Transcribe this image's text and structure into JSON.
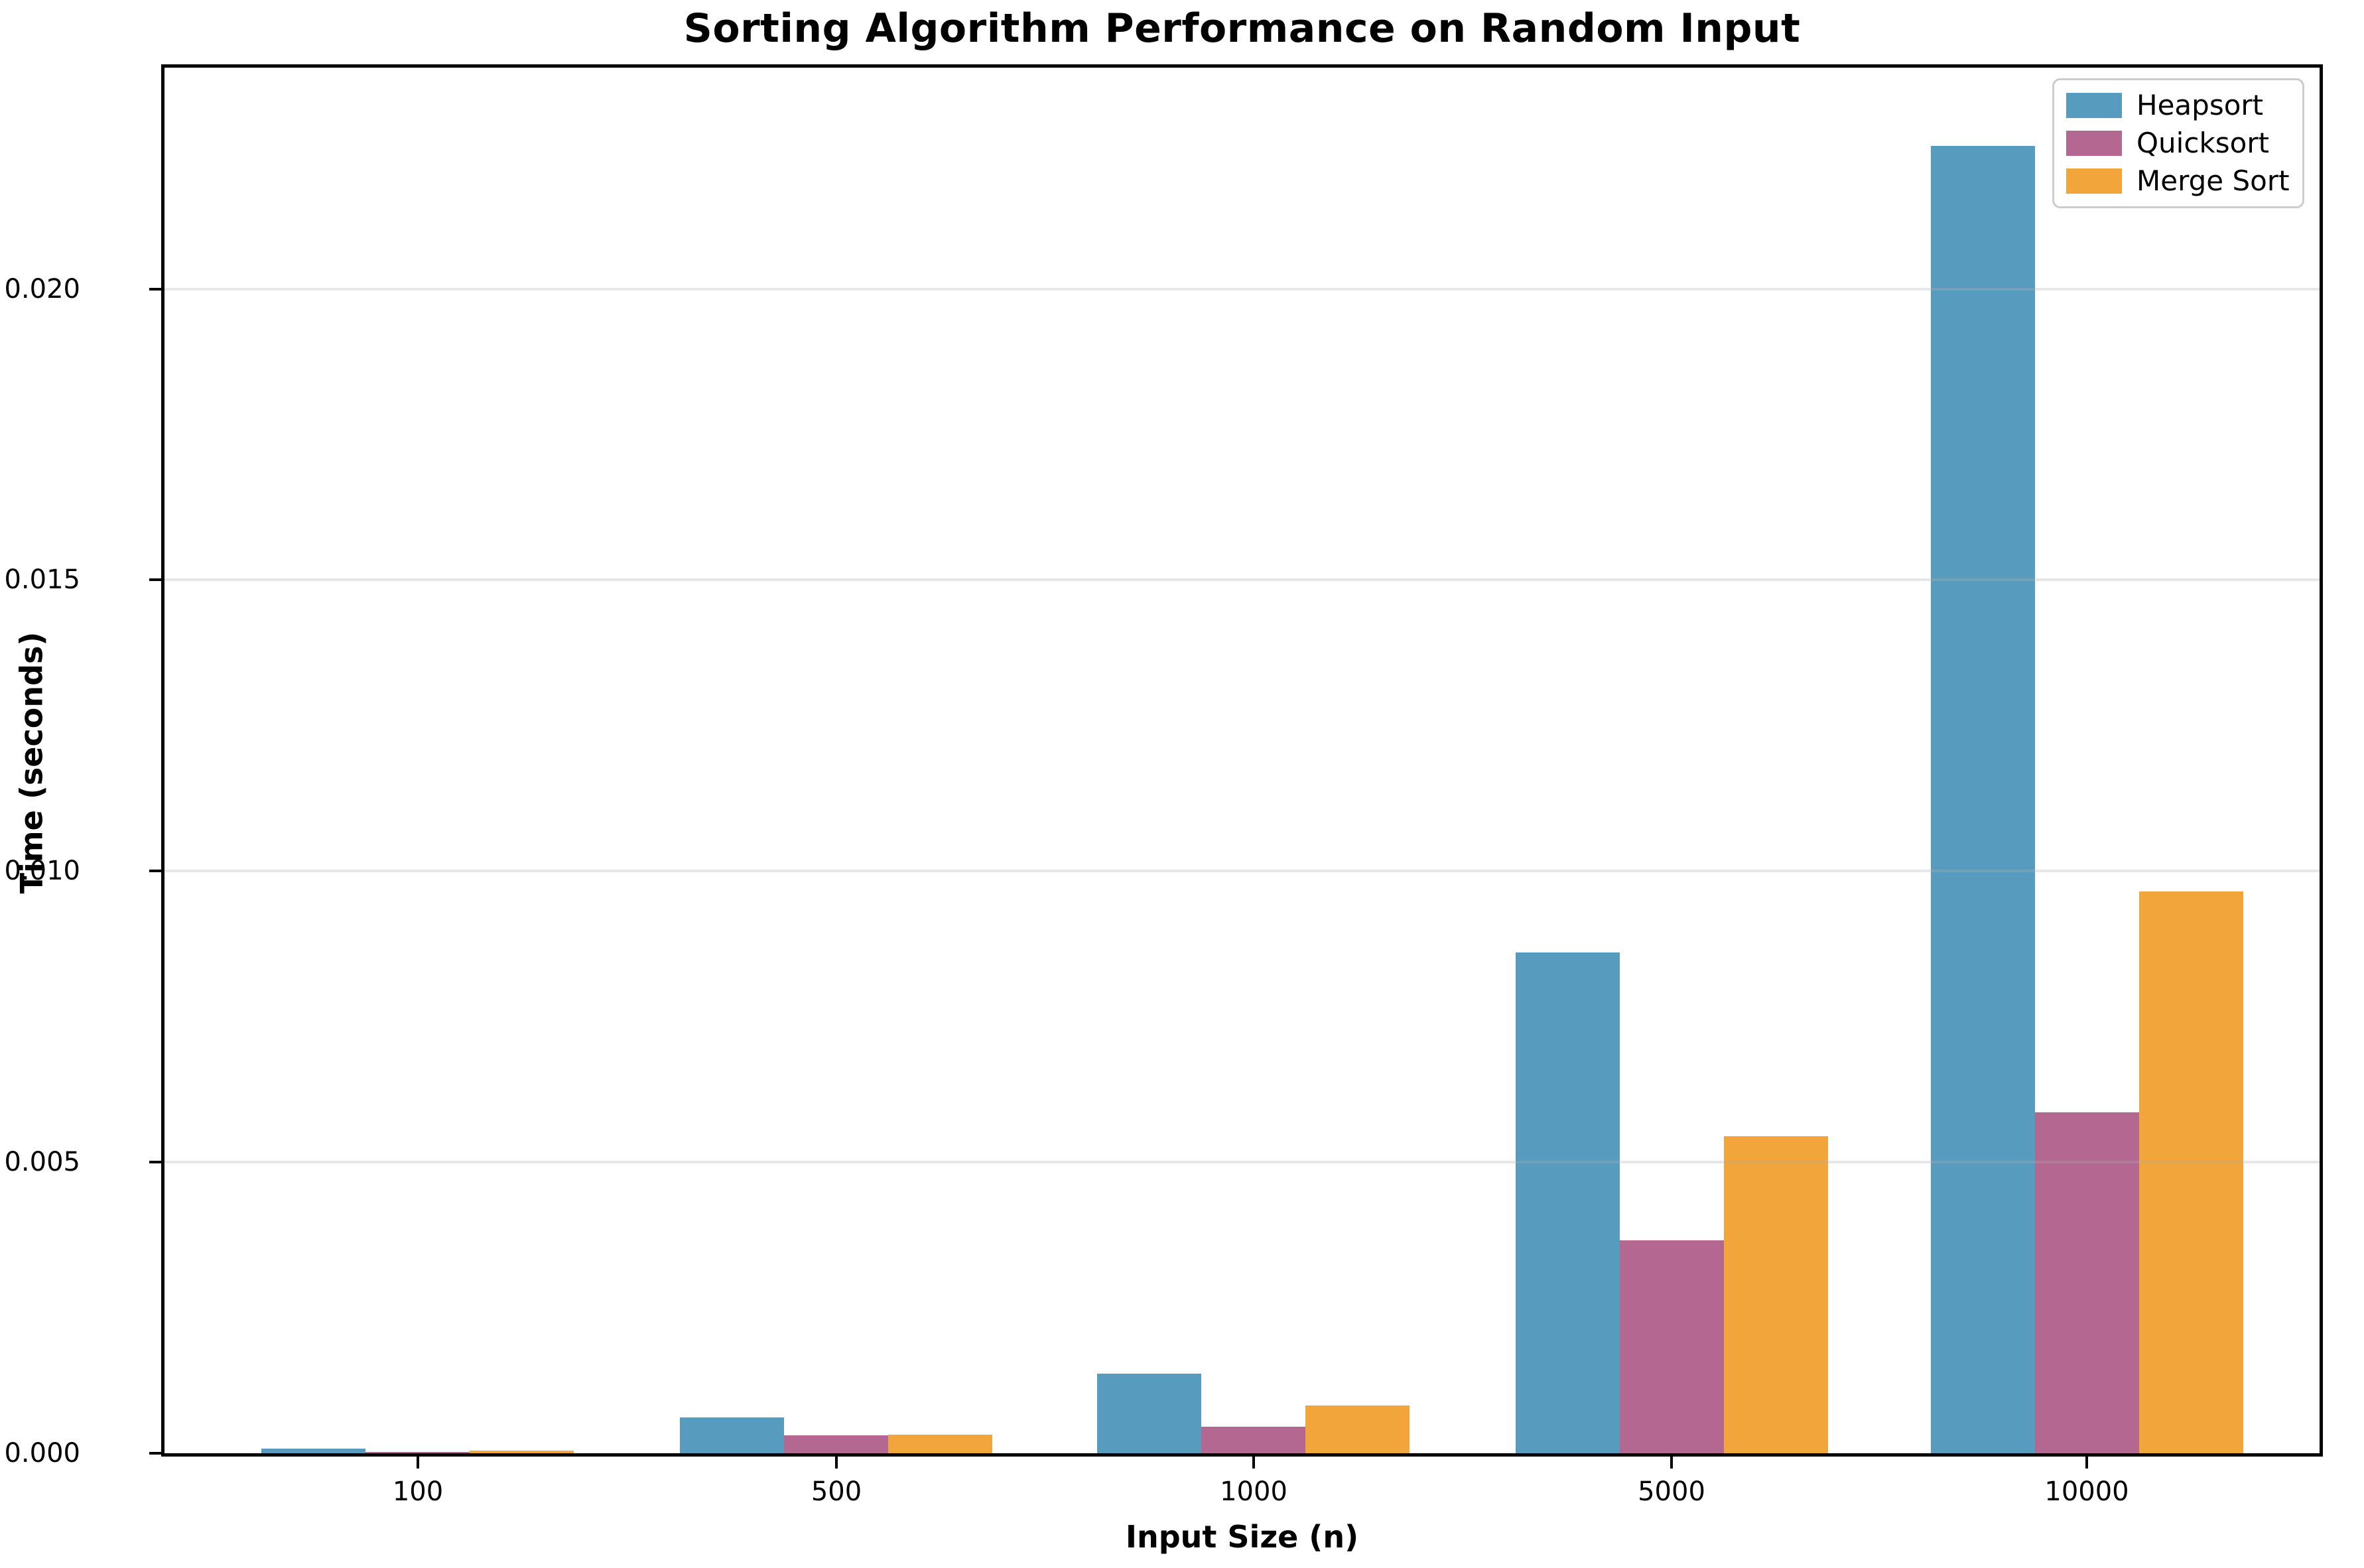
{
  "figure": {
    "title": "Sorting Algorithm Performance on Random Input"
  },
  "chart_data": {
    "type": "bar",
    "title": "Sorting Algorithm Performance on Random Input",
    "xlabel": "Input Size (n)",
    "ylabel": "Time (seconds)",
    "categories": [
      "100",
      "500",
      "1000",
      "5000",
      "10000"
    ],
    "series": [
      {
        "name": "Heapsort",
        "color": "#579CBE",
        "values": [
          8e-05,
          0.00062,
          0.00137,
          0.0086,
          0.02245
        ]
      },
      {
        "name": "Quicksort",
        "color": "#B46791",
        "values": [
          2e-05,
          0.00031,
          0.00046,
          0.00366,
          0.00586
        ]
      },
      {
        "name": "Merge Sort",
        "color": "#F1A53A",
        "values": [
          5e-05,
          0.00032,
          0.00082,
          0.00545,
          0.00965
        ]
      }
    ],
    "ylim": [
      0,
      0.0238
    ],
    "yticks": [
      {
        "value": 0.0,
        "label": "0.000"
      },
      {
        "value": 0.005,
        "label": "0.005"
      },
      {
        "value": 0.01,
        "label": "0.010"
      },
      {
        "value": 0.015,
        "label": "0.015"
      },
      {
        "value": 0.02,
        "label": "0.020"
      }
    ],
    "grid": "horizontal",
    "legend_position": "upper right",
    "colors": {
      "spine": "#000000",
      "grid": "rgba(176,176,176,0.30)",
      "background": "#ffffff"
    }
  }
}
